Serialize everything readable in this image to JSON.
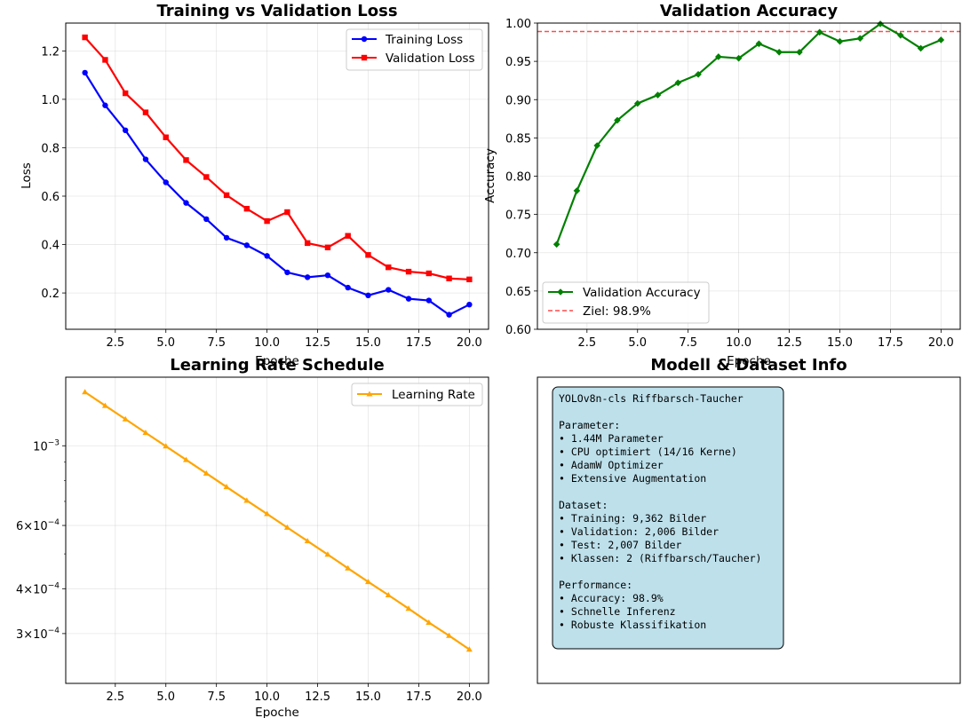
{
  "chart_data": [
    {
      "type": "line",
      "title": "Training vs Validation Loss",
      "xlabel": "Epoche",
      "ylabel": "Loss",
      "xlim": [
        0.05,
        20.95
      ],
      "ylim": [
        0.05,
        1.315
      ],
      "xticks": [
        "2.5",
        "5.0",
        "7.5",
        "10.0",
        "12.5",
        "15.0",
        "17.5",
        "20.0"
      ],
      "yticks": [
        "0.2",
        "0.4",
        "0.6",
        "0.8",
        "1.0",
        "1.2"
      ],
      "grid": true,
      "legend": "top-right",
      "x": [
        1,
        2,
        3,
        4,
        5,
        6,
        7,
        8,
        9,
        10,
        11,
        12,
        13,
        14,
        15,
        16,
        17,
        18,
        19,
        20
      ],
      "series": [
        {
          "name": "Training Loss",
          "color": "#0000ff",
          "marker": "circle",
          "values": [
            1.11,
            0.975,
            0.872,
            0.752,
            0.657,
            0.572,
            0.505,
            0.428,
            0.397,
            0.353,
            0.285,
            0.265,
            0.273,
            0.222,
            0.19,
            0.213,
            0.176,
            0.169,
            0.11,
            0.152
          ]
        },
        {
          "name": "Validation Loss",
          "color": "#ff0000",
          "marker": "square",
          "values": [
            1.256,
            1.163,
            1.025,
            0.946,
            0.843,
            0.749,
            0.679,
            0.604,
            0.548,
            0.497,
            0.534,
            0.406,
            0.388,
            0.436,
            0.357,
            0.306,
            0.288,
            0.281,
            0.26,
            0.256
          ]
        }
      ]
    },
    {
      "type": "line",
      "title": "Validation Accuracy",
      "xlabel": "Epoche",
      "ylabel": "Accuracy",
      "xlim": [
        0.05,
        20.95
      ],
      "ylim": [
        0.6,
        1.0
      ],
      "xticks": [
        "2.5",
        "5.0",
        "7.5",
        "10.0",
        "12.5",
        "15.0",
        "17.5",
        "20.0"
      ],
      "yticks": [
        "0.60",
        "0.65",
        "0.70",
        "0.75",
        "0.80",
        "0.85",
        "0.90",
        "0.95",
        "1.00"
      ],
      "grid": true,
      "legend": "bottom-left",
      "x": [
        1,
        2,
        3,
        4,
        5,
        6,
        7,
        8,
        9,
        10,
        11,
        12,
        13,
        14,
        15,
        16,
        17,
        18,
        19,
        20
      ],
      "series": [
        {
          "name": "Validation Accuracy",
          "color": "#008000",
          "marker": "diamond",
          "values": [
            0.711,
            0.781,
            0.84,
            0.873,
            0.895,
            0.906,
            0.922,
            0.933,
            0.956,
            0.954,
            0.973,
            0.962,
            0.962,
            0.988,
            0.976,
            0.98,
            0.999,
            0.984,
            0.967,
            0.978
          ]
        }
      ],
      "reference_line": {
        "name": "Ziel: 98.9%",
        "value": 0.989,
        "color": "#ff0000",
        "style": "dashed"
      }
    },
    {
      "type": "line",
      "title": "Learning Rate Schedule",
      "xlabel": "Epoche",
      "ylabel": "",
      "yscale": "log",
      "xlim": [
        0.05,
        20.95
      ],
      "ylim": [
        0.000218,
        0.001552
      ],
      "xticks": [
        "2.5",
        "5.0",
        "7.5",
        "10.0",
        "12.5",
        "15.0",
        "17.5",
        "20.0"
      ],
      "yticks": [
        {
          "value": 0.001,
          "mantissa": "",
          "exponent": "−3"
        },
        {
          "value": 0.0006,
          "mantissa": "6",
          "exponent": "−4"
        },
        {
          "value": 0.0004,
          "mantissa": "4",
          "exponent": "−4"
        },
        {
          "value": 0.0003,
          "mantissa": "3",
          "exponent": "−4"
        }
      ],
      "grid": true,
      "legend": "top-right",
      "x": [
        1,
        2,
        3,
        4,
        5,
        6,
        7,
        8,
        9,
        10,
        11,
        12,
        13,
        14,
        15,
        16,
        17,
        18,
        19,
        20
      ],
      "series": [
        {
          "name": "Learning Rate",
          "color": "#ffa500",
          "marker": "triangle",
          "values": [
            0.001411,
            0.001293,
            0.001186,
            0.001087,
            0.000997,
            0.000914,
            0.000838,
            0.000768,
            0.000704,
            0.000646,
            0.000592,
            0.000543,
            0.000498,
            0.000456,
            0.000418,
            0.000384,
            0.000352,
            0.000322,
            0.000296,
            0.000271
          ]
        }
      ]
    }
  ],
  "info_panel": {
    "title": "Modell & Dataset Info",
    "lines": [
      "YOLOv8n-cls Riffbarsch-Taucher",
      "",
      "Parameter:",
      "• 1.44M Parameter",
      "• CPU optimiert (14/16 Kerne)",
      "• AdamW Optimizer",
      "• Extensive Augmentation",
      "",
      "Dataset:",
      "• Training: 9,362 Bilder",
      "• Validation: 2,006 Bilder",
      "• Test: 2,007 Bilder",
      "• Klassen: 2 (Riffbarsch/Taucher)",
      "",
      "Performance:",
      "• Accuracy: 98.9%",
      "• Schnelle Inferenz",
      "• Robuste Klassifikation"
    ],
    "box_color": "#add8e6"
  }
}
